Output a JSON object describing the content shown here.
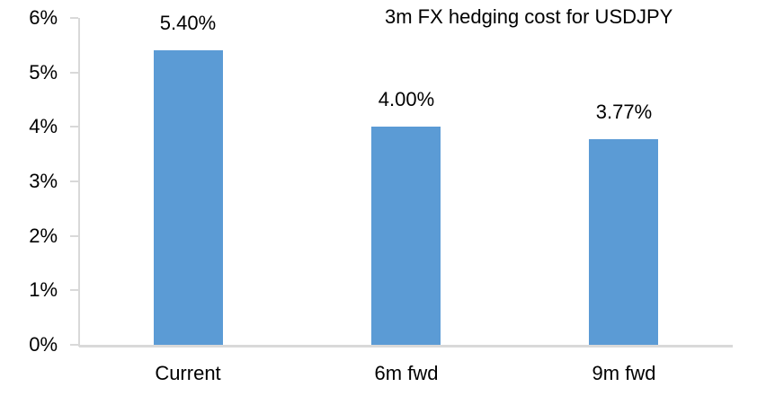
{
  "chart_data": {
    "type": "bar",
    "title": "3m FX hedging cost for USDJPY",
    "categories": [
      "Current",
      "6m fwd",
      "9m fwd"
    ],
    "values": [
      5.4,
      4.0,
      3.77
    ],
    "value_labels": [
      "5.40%",
      "4.00%",
      "3.77%"
    ],
    "ylim": [
      0,
      6
    ],
    "ytick_step": 1,
    "ytick_labels": [
      "0%",
      "1%",
      "2%",
      "3%",
      "4%",
      "5%",
      "6%"
    ],
    "grid": false,
    "legend": "none",
    "bar_color": "#5B9BD5",
    "axis_color": "#D9D9D9",
    "text_color": "#000000",
    "background_color": "#FFFFFF"
  }
}
